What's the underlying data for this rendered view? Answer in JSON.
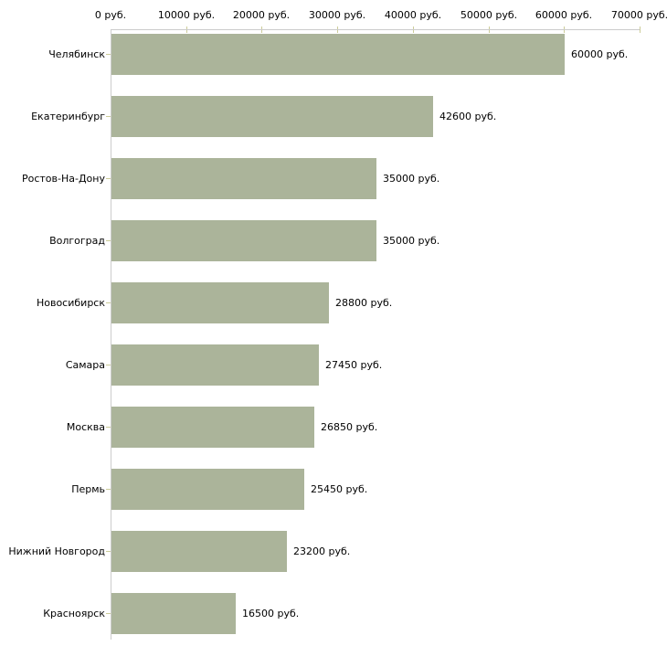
{
  "chart_data": {
    "type": "bar",
    "orientation": "horizontal",
    "title": "",
    "xlabel": "",
    "ylabel": "",
    "xlim": [
      0,
      70000
    ],
    "x_tick_step": 10000,
    "x_tick_labels": [
      "0 руб.",
      "10000 руб.",
      "20000 руб.",
      "30000 руб.",
      "40000 руб.",
      "50000 руб.",
      "60000 руб.",
      "70000 руб."
    ],
    "categories": [
      "Челябинск",
      "Екатеринбург",
      "Ростов-На-Дону",
      "Волгоград",
      "Новосибирск",
      "Самара",
      "Москва",
      "Пермь",
      "Нижний Новгород",
      "Красноярск"
    ],
    "values": [
      60000,
      42600,
      35000,
      35000,
      28800,
      27450,
      26850,
      25450,
      23200,
      16500
    ],
    "bar_value_labels": [
      "60000 руб.",
      "42600 руб.",
      "35000 руб.",
      "35000 руб.",
      "28800 руб.",
      "27450 руб.",
      "26850 руб.",
      "25450 руб.",
      "23200 руб.",
      "16500 руб."
    ],
    "grid": false,
    "legend": null,
    "colors": {
      "bar": "#abb49a",
      "axis_line": "#cccccc",
      "tick_mark": "#cccc99",
      "text": "#000000",
      "background": "#ffffff"
    }
  }
}
